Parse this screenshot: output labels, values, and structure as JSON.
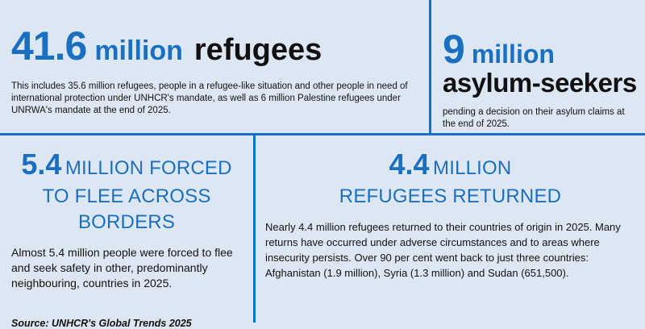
{
  "colors": {
    "accent": "#1a6fc0",
    "background": "#dde7f4",
    "text": "#111111"
  },
  "refugees": {
    "number": "41.6",
    "unit": "million",
    "noun": "refugees",
    "description": "This includes 35.6 million refugees, people in a refugee-like situation and other people in need of international protection under UNHCR's mandate, as well as 6 million Palestine refugees under UNRWA's mandate at the end of 2025."
  },
  "asylum": {
    "number": "9",
    "unit": "million",
    "noun": "asylum-seekers",
    "description": "pending a decision on their asylum claims at the end of 2025."
  },
  "forced": {
    "number": "5.4",
    "caps_line1": "MILLION FORCED",
    "caps_line2": "TO FLEE ACROSS BORDERS",
    "description": "Almost 5.4 million people were forced to flee and seek safety in other, predominantly neighbouring, countries in 2025."
  },
  "returned": {
    "number": "4.4",
    "caps_line1": "MILLION",
    "caps_line2": "REFUGEES RETURNED",
    "description": "Nearly 4.4 million refugees returned to their countries of origin in 2025. Many returns have occurred under adverse circumstances and to areas where insecurity persists. Over 90 per cent went back to just three countries: Afghanistan (1.9 million), Syria (1.3 million) and Sudan (651,500)."
  },
  "source": "Source: UNHCR's Global Trends 2025"
}
